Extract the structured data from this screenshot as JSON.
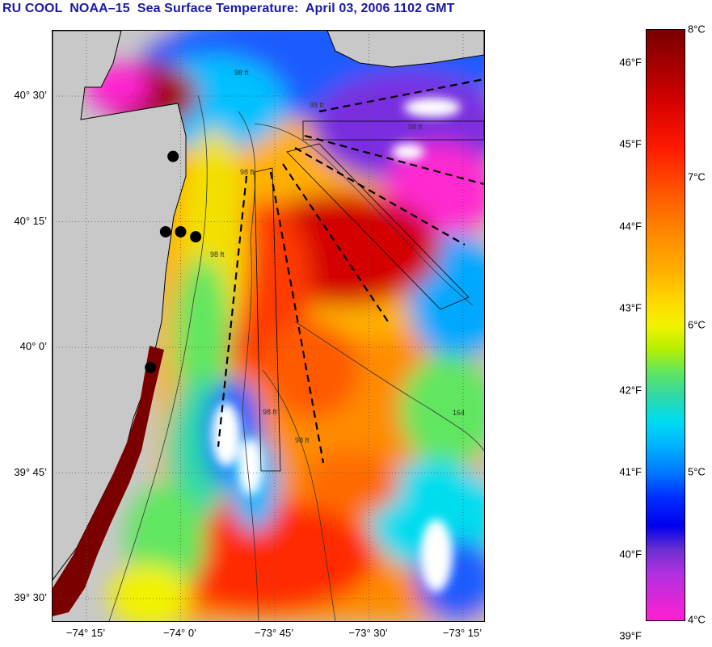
{
  "title": "RU COOL  NOAA–15  Sea Surface Temperature:  April 03, 2006 1102 GMT",
  "map": {
    "latitudes": [
      {
        "deg": 40.5,
        "label": "40° 30’"
      },
      {
        "deg": 40.25,
        "label": "40° 15’"
      },
      {
        "deg": 40.0,
        "label": "40° 0’"
      },
      {
        "deg": 39.75,
        "label": "39° 45’"
      },
      {
        "deg": 39.5,
        "label": "39° 30’"
      }
    ],
    "longitudes": [
      {
        "deg": -74.25,
        "label": "−74° 15’"
      },
      {
        "deg": -74.0,
        "label": "−74° 0’"
      },
      {
        "deg": -73.75,
        "label": "−73° 45’"
      },
      {
        "deg": -73.5,
        "label": "−73° 30’"
      },
      {
        "deg": -73.25,
        "label": "−73° 15’"
      }
    ],
    "depth_contour_labels": [
      "98 ft",
      "98 ft",
      "98 ft",
      "98 ft",
      "98 ft",
      "98 ft",
      "98 ft",
      "164"
    ],
    "stations": [
      {
        "lon": -74.02,
        "lat": 40.38
      },
      {
        "lon": -74.04,
        "lat": 40.23
      },
      {
        "lon": -74.0,
        "lat": 40.23
      },
      {
        "lon": -73.96,
        "lat": 40.22
      },
      {
        "lon": -74.08,
        "lat": 39.96
      }
    ]
  },
  "colorbar": {
    "fahrenheit": [
      {
        "value": 46,
        "label": "46°F"
      },
      {
        "value": 45,
        "label": "45°F"
      },
      {
        "value": 44,
        "label": "44°F"
      },
      {
        "value": 43,
        "label": "43°F"
      },
      {
        "value": 42,
        "label": "42°F"
      },
      {
        "value": 41,
        "label": "41°F"
      },
      {
        "value": 40,
        "label": "40°F"
      },
      {
        "value": 39,
        "label": "39°F"
      }
    ],
    "celsius": [
      {
        "value": 8,
        "label": "8°C"
      },
      {
        "value": 7,
        "label": "7°C"
      },
      {
        "value": 6,
        "label": "6°C"
      },
      {
        "value": 5,
        "label": "5°C"
      },
      {
        "value": 4,
        "label": "4°C"
      }
    ]
  },
  "colors": {
    "land": "#c8c8c8",
    "title": "#1a1aa6",
    "stations": "#000000"
  }
}
